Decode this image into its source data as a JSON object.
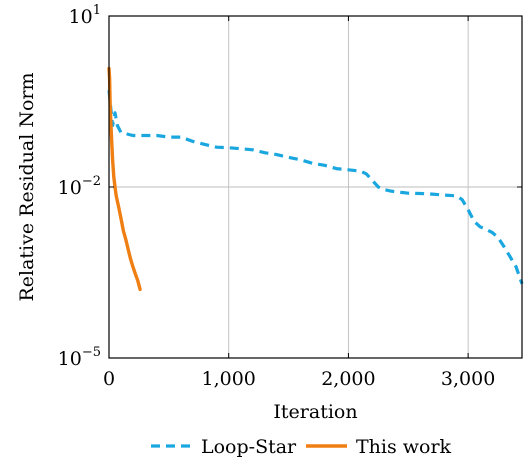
{
  "chart_data": {
    "type": "line",
    "xlabel": "Iteration",
    "ylabel": "Relative Residual Norm",
    "xlim": [
      0,
      3450
    ],
    "ylim": [
      1e-05,
      10
    ],
    "yscale": "log",
    "grid": true,
    "legend_position": "bottom",
    "x_ticks": [
      0,
      1000,
      2000,
      3000
    ],
    "x_tick_labels": [
      "0",
      "1,000",
      "2,000",
      "3,000"
    ],
    "y_ticks": [
      1e-05,
      0.01,
      10
    ],
    "y_tick_labels": [
      {
        "base": "10",
        "exp": "−5"
      },
      {
        "base": "10",
        "exp": "−2"
      },
      {
        "base": "10",
        "exp": "1"
      }
    ],
    "series": [
      {
        "name": "Loop-Star",
        "color": "#1aa7e0",
        "style": "dashed",
        "x": [
          0,
          10,
          30,
          50,
          70,
          100,
          150,
          200,
          300,
          400,
          500,
          600,
          700,
          800,
          900,
          1000,
          1100,
          1200,
          1300,
          1400,
          1500,
          1600,
          1700,
          1800,
          1900,
          2000,
          2100,
          2150,
          2200,
          2250,
          2300,
          2350,
          2400,
          2450,
          2500,
          2600,
          2700,
          2800,
          2900,
          2950,
          3000,
          3050,
          3100,
          3150,
          3200,
          3250,
          3300,
          3350,
          3400,
          3450
        ],
        "y": [
          0.5,
          0.3,
          0.12,
          0.2,
          0.12,
          0.09,
          0.085,
          0.08,
          0.08,
          0.08,
          0.075,
          0.075,
          0.063,
          0.056,
          0.05,
          0.049,
          0.047,
          0.045,
          0.04,
          0.037,
          0.033,
          0.03,
          0.026,
          0.024,
          0.021,
          0.02,
          0.019,
          0.017,
          0.013,
          0.01,
          0.009,
          0.0085,
          0.0082,
          0.008,
          0.0078,
          0.0077,
          0.0075,
          0.0072,
          0.007,
          0.006,
          0.004,
          0.0025,
          0.002,
          0.0018,
          0.0016,
          0.0013,
          0.0009,
          0.0006,
          0.0004,
          0.0002
        ]
      },
      {
        "name": "This work",
        "color": "#f07f13",
        "style": "solid",
        "x": [
          0,
          5,
          10,
          20,
          30,
          40,
          50,
          60,
          80,
          100,
          120,
          140,
          160,
          180,
          200,
          220,
          240,
          260
        ],
        "y": [
          1.2,
          0.8,
          0.25,
          0.08,
          0.03,
          0.015,
          0.01,
          0.007,
          0.0045,
          0.0028,
          0.0017,
          0.0012,
          0.0008,
          0.00055,
          0.0004,
          0.0003,
          0.00023,
          0.00016
        ]
      }
    ]
  }
}
